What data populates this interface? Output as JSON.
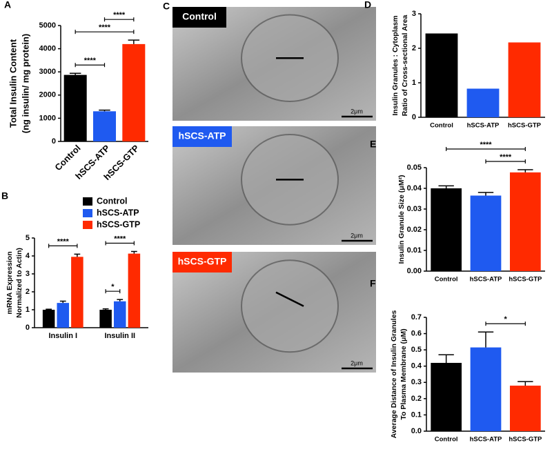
{
  "chart_data": [
    {
      "type": "bar",
      "panel_label": "A",
      "ylabel": [
        "Total Insulin Content",
        "(ng insulin/ mg protein)"
      ],
      "categories": [
        "Control",
        "hSCS-ATP",
        "hSCS-GTP"
      ],
      "values": [
        2870,
        1300,
        4200
      ],
      "errors": [
        70,
        50,
        170
      ],
      "colors": [
        "#000000",
        "#1f5af0",
        "#ff2a00"
      ],
      "ylim": [
        0,
        5000
      ],
      "yticks": [
        0,
        1000,
        2000,
        3000,
        4000,
        5000
      ],
      "annotations": [
        {
          "text": "****",
          "between": [
            0,
            1
          ]
        },
        {
          "text": "****",
          "between": [
            0,
            2
          ]
        },
        {
          "text": "****",
          "between": [
            1,
            2
          ]
        }
      ]
    },
    {
      "type": "grouped_bar",
      "panel_label": "B",
      "ylabel": [
        "mRNA Expression",
        "Normalized to Actin)"
      ],
      "categories": [
        "Insulin I",
        "Insulin II"
      ],
      "series": [
        {
          "name": "Control",
          "color": "#000000",
          "values": [
            1.0,
            1.0
          ],
          "errors": [
            0.03,
            0.05
          ]
        },
        {
          "name": "hSCS-ATP",
          "color": "#1f5af0",
          "values": [
            1.38,
            1.47
          ],
          "errors": [
            0.1,
            0.1
          ]
        },
        {
          "name": "hSCS-GTP",
          "color": "#ff2a00",
          "values": [
            3.95,
            4.13
          ],
          "errors": [
            0.15,
            0.12
          ]
        }
      ],
      "ylim": [
        0,
        5
      ],
      "yticks": [
        0,
        1,
        2,
        3,
        4,
        5
      ],
      "annotations": [
        {
          "text": "****",
          "group": 0,
          "between": [
            0,
            2
          ]
        },
        {
          "text": "*",
          "group": 1,
          "between": [
            0,
            1
          ]
        },
        {
          "text": "****",
          "group": 1,
          "between": [
            0,
            2
          ]
        }
      ]
    },
    {
      "type": "bar",
      "panel_label": "D",
      "ylabel": [
        "Insulin Granules : Cytoplasm",
        "Ratio of Cross-sectional Area"
      ],
      "categories": [
        "Control",
        "hSCS-ATP",
        "hSCS-GTP"
      ],
      "values": [
        2.43,
        0.83,
        2.17
      ],
      "colors": [
        "#000000",
        "#1f5af0",
        "#ff2a00"
      ],
      "ylim": [
        0,
        3
      ],
      "yticks": [
        0,
        1,
        2,
        3
      ]
    },
    {
      "type": "bar",
      "panel_label": "E",
      "ylabel": [
        "Insulin Granule Size (μM²)"
      ],
      "categories": [
        "Control",
        "hSCS-ATP",
        "hSCS-GTP"
      ],
      "values": [
        0.04,
        0.0365,
        0.0477
      ],
      "errors": [
        0.0012,
        0.0015,
        0.0013
      ],
      "colors": [
        "#000000",
        "#1f5af0",
        "#ff2a00"
      ],
      "ylim": [
        0,
        0.05
      ],
      "yticks": [
        {
          "value": 0,
          "label": "0.00"
        },
        {
          "value": 0.01,
          "label": "0.01"
        },
        {
          "value": 0.02,
          "label": "0.02"
        },
        {
          "value": 0.03,
          "label": "0.03"
        },
        {
          "value": 0.04,
          "label": "0.04"
        },
        {
          "value": 0.05,
          "label": "0.05"
        }
      ],
      "annotations": [
        {
          "text": "****",
          "between": [
            1,
            2
          ]
        },
        {
          "text": "****",
          "between": [
            0,
            2
          ]
        }
      ]
    },
    {
      "type": "bar",
      "panel_label": "F",
      "ylabel": [
        "Average Distance of Insulin Granules",
        "To Plasma Membrane (μM)"
      ],
      "categories": [
        "Control",
        "hSCS-ATP",
        "hSCS-GTP"
      ],
      "values": [
        0.42,
        0.515,
        0.28
      ],
      "errors": [
        0.05,
        0.095,
        0.025
      ],
      "colors": [
        "#000000",
        "#1f5af0",
        "#ff2a00"
      ],
      "ylim": [
        0,
        0.7
      ],
      "yticks": [
        {
          "value": 0,
          "label": "0.0"
        },
        0.1,
        0.2,
        0.3,
        0.4,
        0.5,
        0.6,
        0.7
      ],
      "annotations": [
        {
          "text": "*",
          "between": [
            1,
            2
          ]
        }
      ]
    }
  ],
  "panel_c": {
    "panel_label": "C",
    "scale_bar": "2μm",
    "images": [
      {
        "label": "Control",
        "color": "#000000"
      },
      {
        "label": "hSCS-ATP",
        "color": "#1f5af0"
      },
      {
        "label": "hSCS-GTP",
        "color": "#ff2a00"
      }
    ]
  }
}
